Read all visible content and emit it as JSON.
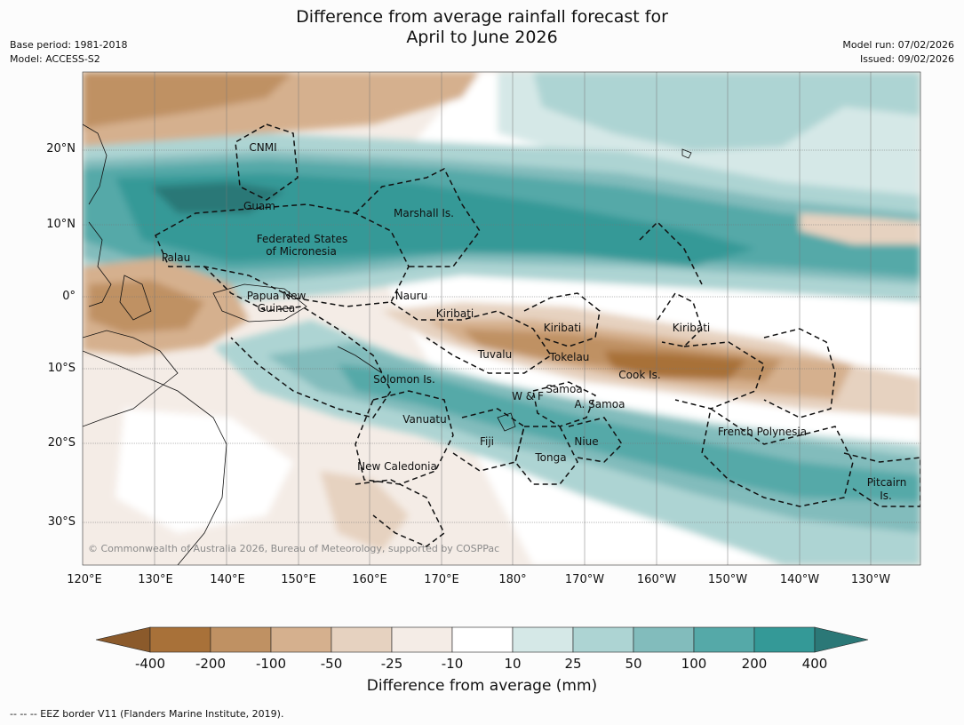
{
  "title": {
    "line1": "Difference from average rainfall forecast for",
    "line2": "April to June 2026"
  },
  "meta": {
    "base_period": "Base period: 1981-2018",
    "model": "Model: ACCESS-S2",
    "model_run": "Model run: 07/02/2026",
    "issued": "Issued: 09/02/2026"
  },
  "map": {
    "lat_ticks": [
      "20°N",
      "10°N",
      "0°",
      "10°S",
      "20°S",
      "30°S"
    ],
    "lon_ticks": [
      "120°E",
      "130°E",
      "140°E",
      "150°E",
      "160°E",
      "170°E",
      "180°",
      "170°W",
      "160°W",
      "150°W",
      "140°W",
      "130°W"
    ],
    "copyright": "© Commonwealth of Australia 2026, Bureau of Meteorology, supported by COSPPac",
    "region_labels": {
      "cnmi": "CNMI",
      "guam": "Guam",
      "marshall": "Marshall Is.",
      "fsm_1": "Federated States",
      "fsm_2": "of Micronesia",
      "palau": "Palau",
      "png_1": "Papua New",
      "png_2": "Guinea",
      "nauru": "Nauru",
      "kiribati_w": "Kiribati",
      "kiribati_c": "Kiribati",
      "kiribati_e": "Kiribati",
      "tuvalu": "Tuvalu",
      "tokelau": "Tokelau",
      "cook": "Cook Is.",
      "solomon": "Solomon Is.",
      "wf": "W & F",
      "samoa": "Samoa",
      "asamoa": "A. Samoa",
      "vanuatu": "Vanuatu",
      "fiji": "Fiji",
      "niue": "Niue",
      "tonga": "Tonga",
      "french_polynesia": "French Polynesia",
      "pitcairn_1": "Pitcairn",
      "pitcairn_2": "Is.",
      "new_caledonia": "New Caledonia"
    }
  },
  "legend": {
    "labels": [
      "-400",
      "-200",
      "-100",
      "-50",
      "-25",
      "-10",
      "10",
      "25",
      "50",
      "100",
      "200",
      "400"
    ],
    "colors": [
      "#8b5a2b",
      "#a87139",
      "#bf9163",
      "#d5b08e",
      "#e6d2c0",
      "#f4ece6",
      "#ffffff",
      "#d5e8e7",
      "#add4d3",
      "#82bcbc",
      "#55a9a8",
      "#349997",
      "#2b7877"
    ],
    "title": "Difference from average (mm)"
  },
  "footnote": "--  --  -- EEZ border V11 (Flanders Marine Institute, 2019)."
}
